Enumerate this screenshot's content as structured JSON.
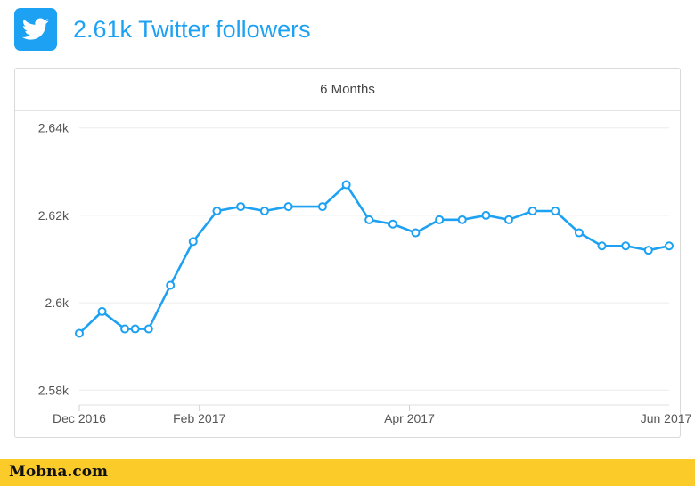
{
  "header": {
    "title": "2.61k Twitter followers",
    "icon": "twitter-bird-icon",
    "accent_color": "#1da1f2"
  },
  "card": {
    "title": "6 Months"
  },
  "chart_data": {
    "type": "line",
    "title": "6 Months",
    "xlabel": "",
    "ylabel": "",
    "ylim": [
      2.577,
      2.643
    ],
    "yticks": [
      {
        "value": 2.64,
        "label": "2.64k"
      },
      {
        "value": 2.62,
        "label": "2.62k"
      },
      {
        "value": 2.6,
        "label": "2.6k"
      },
      {
        "value": 2.58,
        "label": "2.58k"
      }
    ],
    "xticks": [
      {
        "value": 0,
        "label": "Dec 2016"
      },
      {
        "value": 11.6,
        "label": "Feb 2017"
      },
      {
        "value": 31.9,
        "label": "Apr 2017"
      },
      {
        "value": 56.7,
        "label": "Jun 2017"
      }
    ],
    "xlim": [
      0,
      57
    ],
    "grid": true,
    "series": [
      {
        "color": "#1da1f2",
        "points": [
          [
            0.0,
            2.593
          ],
          [
            2.2,
            2.598
          ],
          [
            4.4,
            2.594
          ],
          [
            5.4,
            2.594
          ],
          [
            6.7,
            2.594
          ],
          [
            8.8,
            2.604
          ],
          [
            11.0,
            2.614
          ],
          [
            13.3,
            2.621
          ],
          [
            15.6,
            2.622
          ],
          [
            17.9,
            2.621
          ],
          [
            20.2,
            2.622
          ],
          [
            23.5,
            2.622
          ],
          [
            25.8,
            2.627
          ],
          [
            28.0,
            2.619
          ],
          [
            30.3,
            2.618
          ],
          [
            32.5,
            2.616
          ],
          [
            34.8,
            2.619
          ],
          [
            37.0,
            2.619
          ],
          [
            39.3,
            2.62
          ],
          [
            41.5,
            2.619
          ],
          [
            43.8,
            2.621
          ],
          [
            46.0,
            2.621
          ],
          [
            48.3,
            2.616
          ],
          [
            50.5,
            2.613
          ],
          [
            52.8,
            2.613
          ],
          [
            55.0,
            2.612
          ],
          [
            57.0,
            2.613
          ]
        ]
      }
    ]
  },
  "footer": {
    "text": "Mobna.com",
    "color": "#fbcb2a"
  }
}
